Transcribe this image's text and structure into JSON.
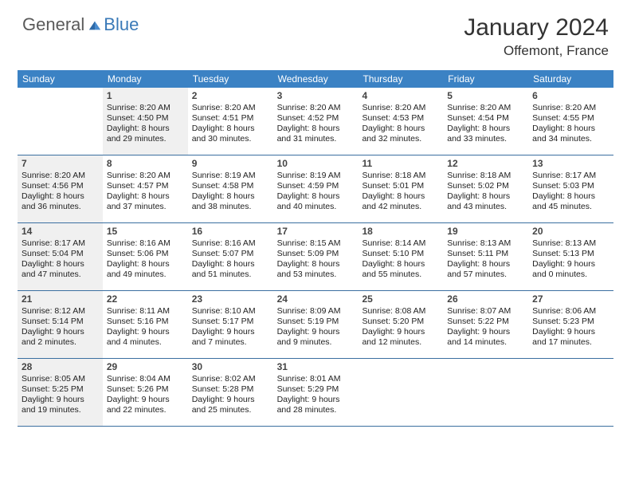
{
  "logo": {
    "general": "General",
    "blue": "Blue"
  },
  "title": "January 2024",
  "location": "Offemont, France",
  "colors": {
    "header_bg": "#3b82c4",
    "header_text": "#ffffff",
    "border": "#3b6fa0",
    "shaded": "#f0f0f0",
    "logo_gray": "#5a5a5a",
    "logo_blue": "#3a7ab8"
  },
  "dayNames": [
    "Sunday",
    "Monday",
    "Tuesday",
    "Wednesday",
    "Thursday",
    "Friday",
    "Saturday"
  ],
  "weeks": [
    [
      {
        "num": "",
        "sunrise": "",
        "sunset": "",
        "daylight": "",
        "shaded": false,
        "empty": true
      },
      {
        "num": "1",
        "sunrise": "Sunrise: 8:20 AM",
        "sunset": "Sunset: 4:50 PM",
        "daylight": "Daylight: 8 hours and 29 minutes.",
        "shaded": true
      },
      {
        "num": "2",
        "sunrise": "Sunrise: 8:20 AM",
        "sunset": "Sunset: 4:51 PM",
        "daylight": "Daylight: 8 hours and 30 minutes.",
        "shaded": false
      },
      {
        "num": "3",
        "sunrise": "Sunrise: 8:20 AM",
        "sunset": "Sunset: 4:52 PM",
        "daylight": "Daylight: 8 hours and 31 minutes.",
        "shaded": false
      },
      {
        "num": "4",
        "sunrise": "Sunrise: 8:20 AM",
        "sunset": "Sunset: 4:53 PM",
        "daylight": "Daylight: 8 hours and 32 minutes.",
        "shaded": false
      },
      {
        "num": "5",
        "sunrise": "Sunrise: 8:20 AM",
        "sunset": "Sunset: 4:54 PM",
        "daylight": "Daylight: 8 hours and 33 minutes.",
        "shaded": false
      },
      {
        "num": "6",
        "sunrise": "Sunrise: 8:20 AM",
        "sunset": "Sunset: 4:55 PM",
        "daylight": "Daylight: 8 hours and 34 minutes.",
        "shaded": false
      }
    ],
    [
      {
        "num": "7",
        "sunrise": "Sunrise: 8:20 AM",
        "sunset": "Sunset: 4:56 PM",
        "daylight": "Daylight: 8 hours and 36 minutes.",
        "shaded": true
      },
      {
        "num": "8",
        "sunrise": "Sunrise: 8:20 AM",
        "sunset": "Sunset: 4:57 PM",
        "daylight": "Daylight: 8 hours and 37 minutes.",
        "shaded": false
      },
      {
        "num": "9",
        "sunrise": "Sunrise: 8:19 AM",
        "sunset": "Sunset: 4:58 PM",
        "daylight": "Daylight: 8 hours and 38 minutes.",
        "shaded": false
      },
      {
        "num": "10",
        "sunrise": "Sunrise: 8:19 AM",
        "sunset": "Sunset: 4:59 PM",
        "daylight": "Daylight: 8 hours and 40 minutes.",
        "shaded": false
      },
      {
        "num": "11",
        "sunrise": "Sunrise: 8:18 AM",
        "sunset": "Sunset: 5:01 PM",
        "daylight": "Daylight: 8 hours and 42 minutes.",
        "shaded": false
      },
      {
        "num": "12",
        "sunrise": "Sunrise: 8:18 AM",
        "sunset": "Sunset: 5:02 PM",
        "daylight": "Daylight: 8 hours and 43 minutes.",
        "shaded": false
      },
      {
        "num": "13",
        "sunrise": "Sunrise: 8:17 AM",
        "sunset": "Sunset: 5:03 PM",
        "daylight": "Daylight: 8 hours and 45 minutes.",
        "shaded": false
      }
    ],
    [
      {
        "num": "14",
        "sunrise": "Sunrise: 8:17 AM",
        "sunset": "Sunset: 5:04 PM",
        "daylight": "Daylight: 8 hours and 47 minutes.",
        "shaded": true
      },
      {
        "num": "15",
        "sunrise": "Sunrise: 8:16 AM",
        "sunset": "Sunset: 5:06 PM",
        "daylight": "Daylight: 8 hours and 49 minutes.",
        "shaded": false
      },
      {
        "num": "16",
        "sunrise": "Sunrise: 8:16 AM",
        "sunset": "Sunset: 5:07 PM",
        "daylight": "Daylight: 8 hours and 51 minutes.",
        "shaded": false
      },
      {
        "num": "17",
        "sunrise": "Sunrise: 8:15 AM",
        "sunset": "Sunset: 5:09 PM",
        "daylight": "Daylight: 8 hours and 53 minutes.",
        "shaded": false
      },
      {
        "num": "18",
        "sunrise": "Sunrise: 8:14 AM",
        "sunset": "Sunset: 5:10 PM",
        "daylight": "Daylight: 8 hours and 55 minutes.",
        "shaded": false
      },
      {
        "num": "19",
        "sunrise": "Sunrise: 8:13 AM",
        "sunset": "Sunset: 5:11 PM",
        "daylight": "Daylight: 8 hours and 57 minutes.",
        "shaded": false
      },
      {
        "num": "20",
        "sunrise": "Sunrise: 8:13 AM",
        "sunset": "Sunset: 5:13 PM",
        "daylight": "Daylight: 9 hours and 0 minutes.",
        "shaded": false
      }
    ],
    [
      {
        "num": "21",
        "sunrise": "Sunrise: 8:12 AM",
        "sunset": "Sunset: 5:14 PM",
        "daylight": "Daylight: 9 hours and 2 minutes.",
        "shaded": true
      },
      {
        "num": "22",
        "sunrise": "Sunrise: 8:11 AM",
        "sunset": "Sunset: 5:16 PM",
        "daylight": "Daylight: 9 hours and 4 minutes.",
        "shaded": false
      },
      {
        "num": "23",
        "sunrise": "Sunrise: 8:10 AM",
        "sunset": "Sunset: 5:17 PM",
        "daylight": "Daylight: 9 hours and 7 minutes.",
        "shaded": false
      },
      {
        "num": "24",
        "sunrise": "Sunrise: 8:09 AM",
        "sunset": "Sunset: 5:19 PM",
        "daylight": "Daylight: 9 hours and 9 minutes.",
        "shaded": false
      },
      {
        "num": "25",
        "sunrise": "Sunrise: 8:08 AM",
        "sunset": "Sunset: 5:20 PM",
        "daylight": "Daylight: 9 hours and 12 minutes.",
        "shaded": false
      },
      {
        "num": "26",
        "sunrise": "Sunrise: 8:07 AM",
        "sunset": "Sunset: 5:22 PM",
        "daylight": "Daylight: 9 hours and 14 minutes.",
        "shaded": false
      },
      {
        "num": "27",
        "sunrise": "Sunrise: 8:06 AM",
        "sunset": "Sunset: 5:23 PM",
        "daylight": "Daylight: 9 hours and 17 minutes.",
        "shaded": false
      }
    ],
    [
      {
        "num": "28",
        "sunrise": "Sunrise: 8:05 AM",
        "sunset": "Sunset: 5:25 PM",
        "daylight": "Daylight: 9 hours and 19 minutes.",
        "shaded": true
      },
      {
        "num": "29",
        "sunrise": "Sunrise: 8:04 AM",
        "sunset": "Sunset: 5:26 PM",
        "daylight": "Daylight: 9 hours and 22 minutes.",
        "shaded": false
      },
      {
        "num": "30",
        "sunrise": "Sunrise: 8:02 AM",
        "sunset": "Sunset: 5:28 PM",
        "daylight": "Daylight: 9 hours and 25 minutes.",
        "shaded": false
      },
      {
        "num": "31",
        "sunrise": "Sunrise: 8:01 AM",
        "sunset": "Sunset: 5:29 PM",
        "daylight": "Daylight: 9 hours and 28 minutes.",
        "shaded": false
      },
      {
        "num": "",
        "sunrise": "",
        "sunset": "",
        "daylight": "",
        "shaded": false,
        "empty": true
      },
      {
        "num": "",
        "sunrise": "",
        "sunset": "",
        "daylight": "",
        "shaded": false,
        "empty": true
      },
      {
        "num": "",
        "sunrise": "",
        "sunset": "",
        "daylight": "",
        "shaded": false,
        "empty": true
      }
    ]
  ]
}
